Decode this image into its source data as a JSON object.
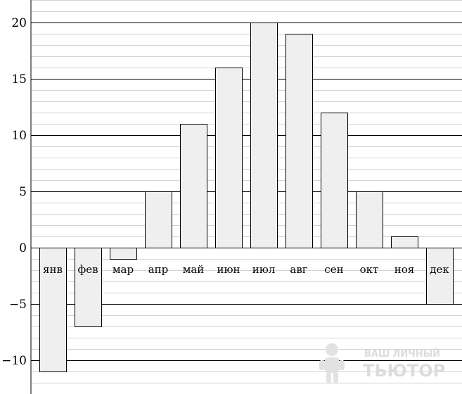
{
  "chart_data": {
    "type": "bar",
    "title": "",
    "xlabel": "",
    "ylabel": "",
    "categories": [
      "янв",
      "фев",
      "мар",
      "апр",
      "май",
      "июн",
      "июл",
      "авг",
      "сен",
      "окт",
      "ноя",
      "дек"
    ],
    "values": [
      -11,
      -7,
      -1,
      5,
      11,
      16,
      20,
      19,
      12,
      5,
      1,
      -5
    ],
    "ylim": [
      -13,
      22
    ],
    "yticks": [
      -10,
      -5,
      0,
      5,
      10,
      15,
      20
    ],
    "ytick_labels": [
      "−10",
      "−5",
      "0",
      "5",
      "10",
      "15",
      "20"
    ],
    "minor_grid_step": 1,
    "grid": true,
    "bar_color": "#efefef",
    "bar_edge_color": "#000000"
  },
  "watermark": {
    "line1": "ВАШ ЛИЧНЫЙ",
    "line2": "ТЬЮТОР"
  }
}
